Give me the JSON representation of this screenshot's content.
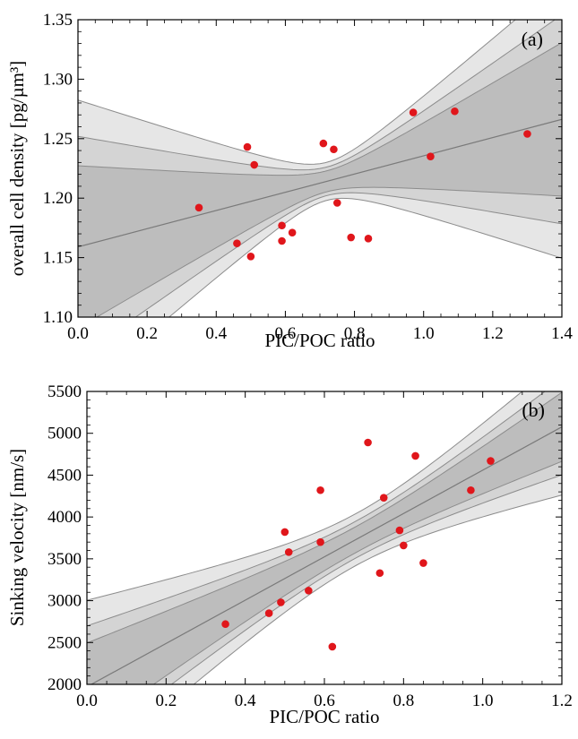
{
  "colors": {
    "band_outer": "#e6e6e6",
    "band_middle": "#d4d4d4",
    "band_inner": "#bdbdbd",
    "band_edge": "#8c8c8c",
    "fit_line": "#7a7a7a",
    "points": "#e0161b"
  },
  "chart_data": [
    {
      "type": "scatter",
      "panel_label": "(a)",
      "xlabel": "PIC/POC ratio",
      "ylabel": "overall cell density [pg/µm³]",
      "xlim": [
        0.0,
        1.4
      ],
      "ylim": [
        1.1,
        1.35
      ],
      "x_ticks": [
        "0.0",
        "0.2",
        "0.4",
        "0.6",
        "0.8",
        "1.0",
        "1.2",
        "1.4"
      ],
      "y_ticks": [
        "1.10",
        "1.15",
        "1.20",
        "1.25",
        "1.30",
        "1.35"
      ],
      "grid": false,
      "fit": {
        "type": "linear",
        "intercept": 1.159,
        "slope": 0.0766,
        "x_mean": 0.72,
        "confidence_bands": [
          {
            "level": "outer",
            "se0": 0.016,
            "k": 0.17
          },
          {
            "level": "middle",
            "se0": 0.012,
            "k": 0.128
          },
          {
            "level": "inner",
            "se0": 0.0088,
            "k": 0.094
          }
        ]
      },
      "points": [
        {
          "x": 0.35,
          "y": 1.192
        },
        {
          "x": 0.46,
          "y": 1.162
        },
        {
          "x": 0.49,
          "y": 1.243
        },
        {
          "x": 0.5,
          "y": 1.151
        },
        {
          "x": 0.51,
          "y": 1.228
        },
        {
          "x": 0.59,
          "y": 1.177
        },
        {
          "x": 0.59,
          "y": 1.164
        },
        {
          "x": 0.62,
          "y": 1.171
        },
        {
          "x": 0.71,
          "y": 1.246
        },
        {
          "x": 0.74,
          "y": 1.241
        },
        {
          "x": 0.75,
          "y": 1.196
        },
        {
          "x": 0.79,
          "y": 1.167
        },
        {
          "x": 0.84,
          "y": 1.166
        },
        {
          "x": 0.97,
          "y": 1.272
        },
        {
          "x": 1.02,
          "y": 1.235
        },
        {
          "x": 1.09,
          "y": 1.273
        },
        {
          "x": 1.3,
          "y": 1.254
        }
      ]
    },
    {
      "type": "scatter",
      "panel_label": "(b)",
      "xlabel": "PIC/POC ratio",
      "ylabel": "Sinking velocity [nm/s]",
      "xlim": [
        0.0,
        1.2
      ],
      "ylim": [
        2000,
        5500
      ],
      "x_ticks": [
        "0.0",
        "0.2",
        "0.4",
        "0.6",
        "0.8",
        "1.0",
        "1.2"
      ],
      "y_ticks": [
        "2000",
        "2500",
        "3000",
        "3500",
        "4000",
        "4500",
        "5000",
        "5500"
      ],
      "grid": false,
      "fit": {
        "type": "linear",
        "intercept": 1971,
        "slope": 2588,
        "x_mean": 0.68,
        "confidence_bands": [
          {
            "level": "outer",
            "se0": 310,
            "k": 1450
          },
          {
            "level": "middle",
            "se0": 220,
            "k": 1020
          },
          {
            "level": "inner",
            "se0": 155,
            "k": 735
          }
        ]
      },
      "points": [
        {
          "x": 0.35,
          "y": 2720
        },
        {
          "x": 0.46,
          "y": 2850
        },
        {
          "x": 0.49,
          "y": 2980
        },
        {
          "x": 0.5,
          "y": 3820
        },
        {
          "x": 0.51,
          "y": 3580
        },
        {
          "x": 0.56,
          "y": 3120
        },
        {
          "x": 0.59,
          "y": 3700
        },
        {
          "x": 0.59,
          "y": 4320
        },
        {
          "x": 0.62,
          "y": 2450
        },
        {
          "x": 0.71,
          "y": 4890
        },
        {
          "x": 0.74,
          "y": 3330
        },
        {
          "x": 0.75,
          "y": 4230
        },
        {
          "x": 0.79,
          "y": 3840
        },
        {
          "x": 0.8,
          "y": 3660
        },
        {
          "x": 0.83,
          "y": 4730
        },
        {
          "x": 0.85,
          "y": 3450
        },
        {
          "x": 0.97,
          "y": 4320
        },
        {
          "x": 1.02,
          "y": 4670
        }
      ]
    }
  ]
}
